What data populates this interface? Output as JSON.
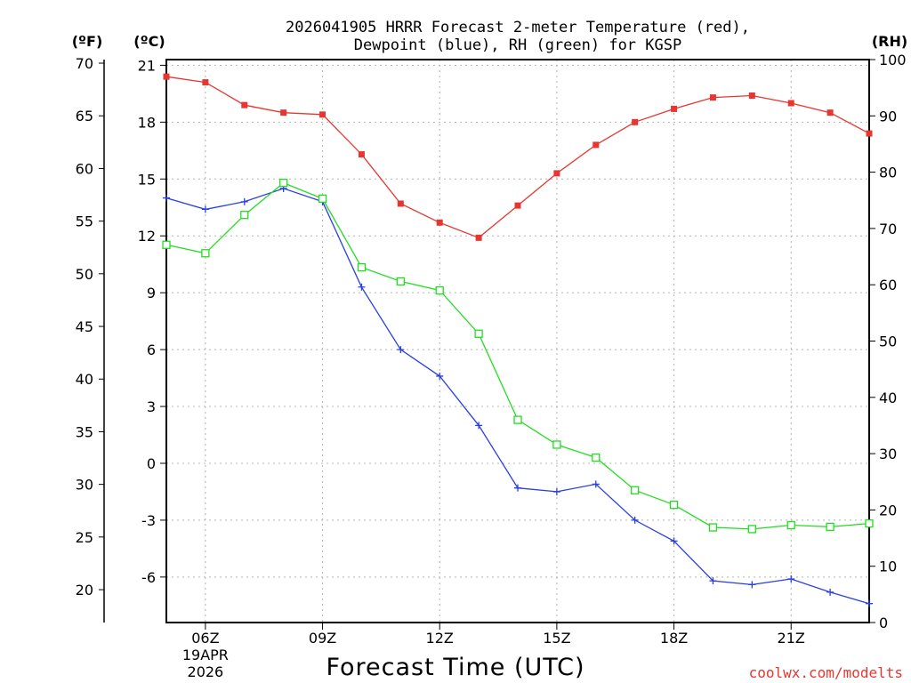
{
  "chart_data": {
    "type": "line",
    "title_line1": "2026041905 HRRR Forecast 2-meter Temperature (red),",
    "title_line2": "Dewpoint (blue), RH (green) for KGSP",
    "xlabel": "Forecast Time (UTC)",
    "credit": "coolwx.com/modelts",
    "left_outer_unit": "(ºF)",
    "left_inner_unit": "(ºC)",
    "right_unit": "(RH)",
    "x": [
      5,
      6,
      7,
      8,
      9,
      10,
      11,
      12,
      13,
      14,
      15,
      16,
      17,
      18,
      19,
      20,
      21,
      22,
      23
    ],
    "xlim": [
      5,
      23
    ],
    "x_ticks": [
      {
        "x": 6,
        "label": "06Z",
        "date1": "19APR",
        "date2": "2026"
      },
      {
        "x": 9,
        "label": "09Z"
      },
      {
        "x": 12,
        "label": "12Z"
      },
      {
        "x": 15,
        "label": "15Z"
      },
      {
        "x": 18,
        "label": "18Z"
      },
      {
        "x": 21,
        "label": "21Z"
      }
    ],
    "c_axis": {
      "ylim": [
        -8.4,
        21.3
      ],
      "ticks": [
        21,
        18,
        15,
        12,
        9,
        6,
        3,
        0,
        -3,
        -6
      ],
      "tick_labels": [
        "21",
        "18",
        "15",
        "12",
        "9",
        "6",
        "3",
        "0",
        "-3",
        "-6"
      ]
    },
    "f_axis": {
      "ticks": [
        70,
        65,
        60,
        55,
        50,
        45,
        40,
        35,
        30,
        25,
        20
      ],
      "tick_labels": [
        "70",
        "65",
        "60",
        "55",
        "50",
        "45",
        "40",
        "35",
        "30",
        "25",
        "20"
      ]
    },
    "rh_axis": {
      "ylim": [
        0,
        100
      ],
      "ticks": [
        100,
        90,
        80,
        70,
        60,
        50,
        40,
        30,
        20,
        10,
        0
      ],
      "tick_labels": [
        "100",
        "90",
        "80",
        "70",
        "60",
        "50",
        "40",
        "30",
        "20",
        "10",
        "0"
      ]
    },
    "series": [
      {
        "name": "Temperature",
        "unit": "C",
        "color": "#e8352f",
        "marker": "filled-square",
        "values": [
          20.4,
          20.1,
          18.9,
          18.5,
          18.4,
          16.3,
          13.7,
          12.7,
          11.9,
          13.6,
          15.3,
          16.8,
          18.0,
          18.7,
          19.3,
          19.4,
          19.0,
          18.5,
          17.4
        ]
      },
      {
        "name": "Dewpoint",
        "unit": "C",
        "color": "#2a3fe0",
        "marker": "plus",
        "values": [
          14.0,
          13.4,
          13.8,
          14.5,
          13.8,
          9.3,
          6.0,
          4.6,
          2.0,
          -1.3,
          -1.5,
          -1.1,
          -3.0,
          -4.1,
          -6.2,
          -6.4,
          -6.1,
          -6.8,
          -7.4
        ]
      },
      {
        "name": "RH",
        "unit": "%",
        "color": "#22dd22",
        "marker": "open-square",
        "values": [
          67.1,
          65.6,
          72.4,
          78.1,
          75.3,
          63.1,
          60.6,
          59.0,
          51.3,
          36.0,
          31.6,
          29.3,
          23.5,
          20.9,
          16.9,
          16.6,
          17.3,
          17.0,
          17.6
        ]
      }
    ]
  }
}
